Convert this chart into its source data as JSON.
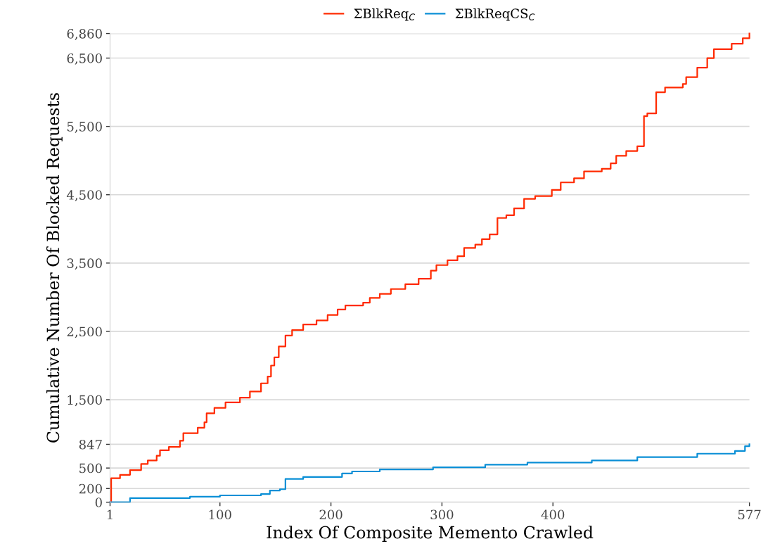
{
  "chart_data": {
    "type": "step",
    "xlabel": "Index Of Composite Memento Crawled",
    "ylabel": "Cumulative Number Of Blocked Requests",
    "legend": "top",
    "grid": "y",
    "line_style": "solid",
    "marker": "none",
    "xlim": [
      1,
      577
    ],
    "ylim": [
      0,
      6860
    ],
    "xticks": [
      1,
      100,
      200,
      300,
      400,
      577
    ],
    "yticks": [
      0,
      200,
      500,
      847,
      {
        "value": 1500,
        "label": "1,500"
      },
      {
        "value": 2500,
        "label": "2,500"
      },
      {
        "value": 3500,
        "label": "3,500"
      },
      {
        "value": 4500,
        "label": "4,500"
      },
      {
        "value": 5500,
        "label": "5,500"
      },
      {
        "value": 6500,
        "label": "6,500"
      },
      {
        "value": 6860,
        "label": "6,860"
      }
    ],
    "series": [
      {
        "name": "ΣBlkReq$_{C}$",
        "color": "#ff2a00",
        "x": [
          1,
          2,
          10,
          19,
          29,
          35,
          43,
          46,
          54,
          64,
          67,
          80,
          86,
          88,
          95,
          105,
          118,
          127,
          137,
          143,
          146,
          149,
          153,
          159,
          165,
          175,
          187,
          197,
          206,
          213,
          229,
          235,
          244,
          254,
          267,
          279,
          290,
          295,
          305,
          314,
          320,
          330,
          336,
          343,
          350,
          358,
          365,
          374,
          384,
          399,
          407,
          419,
          428,
          444,
          452,
          457,
          466,
          476,
          482,
          485,
          493,
          501,
          517,
          520,
          530,
          539,
          545,
          561,
          571,
          577
        ],
        "values": [
          0,
          350,
          400,
          470,
          560,
          610,
          680,
          760,
          810,
          900,
          1010,
          1090,
          1170,
          1300,
          1380,
          1460,
          1530,
          1620,
          1740,
          1840,
          2000,
          2120,
          2280,
          2440,
          2520,
          2600,
          2660,
          2740,
          2820,
          2880,
          2920,
          2990,
          3050,
          3120,
          3190,
          3270,
          3390,
          3470,
          3540,
          3600,
          3720,
          3770,
          3850,
          3920,
          4160,
          4200,
          4300,
          4440,
          4480,
          4570,
          4680,
          4740,
          4840,
          4880,
          4960,
          5070,
          5140,
          5210,
          5650,
          5690,
          6000,
          6070,
          6120,
          6220,
          6360,
          6500,
          6630,
          6710,
          6790,
          6860
        ]
      },
      {
        "name": "ΣBlkReqCS$_{C}$",
        "color": "#0a8fd6",
        "x": [
          1,
          19,
          73,
          100,
          137,
          145,
          154,
          159,
          175,
          210,
          219,
          244,
          292,
          339,
          377,
          435,
          476,
          530,
          564,
          573,
          577
        ],
        "values": [
          0,
          60,
          80,
          100,
          120,
          170,
          190,
          340,
          370,
          420,
          450,
          480,
          510,
          550,
          580,
          610,
          660,
          710,
          750,
          820,
          847
        ]
      }
    ]
  }
}
